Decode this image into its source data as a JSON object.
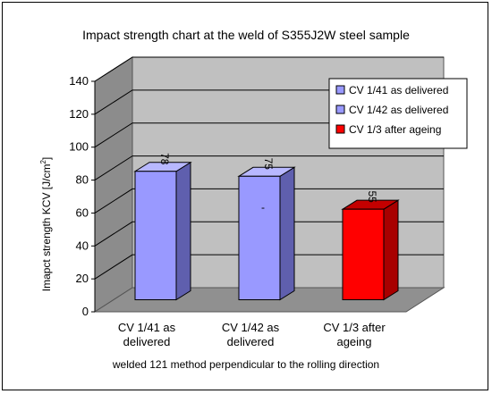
{
  "chart_data": {
    "type": "bar",
    "title": "Impact strength chart at the weld of S355J2W steel sample",
    "xlabel": "welded 121 method perpendicular to the rolling direction",
    "ylabel": "Imapct strength KCV [J/cm",
    "ylabel_sup": "2",
    "ylabel_end": "]",
    "ylim": [
      0,
      140
    ],
    "yticks": [
      0,
      20,
      40,
      60,
      80,
      100,
      120,
      140
    ],
    "grid": true,
    "legend_position": "top-right",
    "categories": [
      [
        "CV 1/41 as",
        "delivered"
      ],
      [
        "CV 1/42 as",
        "delivered"
      ],
      [
        "CV 1/3 after",
        "ageing"
      ]
    ],
    "values": [
      78,
      75,
      55
    ],
    "data_labels": [
      "78",
      "75",
      "55"
    ],
    "colors": [
      "#9999ff",
      "#9999ff",
      "#ff0000"
    ],
    "side_colors": [
      "#5f5fae",
      "#5f5fae",
      "#a80000"
    ],
    "top_colors": [
      "#b8b8ff",
      "#b8b8ff",
      "#c40000"
    ],
    "legend": [
      {
        "label": "CV 1/41 as delivered",
        "color": "#9999ff"
      },
      {
        "label": "CV 1/42 as delivered",
        "color": "#9999ff"
      },
      {
        "label": "CV 1/3 after ageing",
        "color": "#ff0000"
      }
    ],
    "annotations": [
      "-"
    ]
  }
}
